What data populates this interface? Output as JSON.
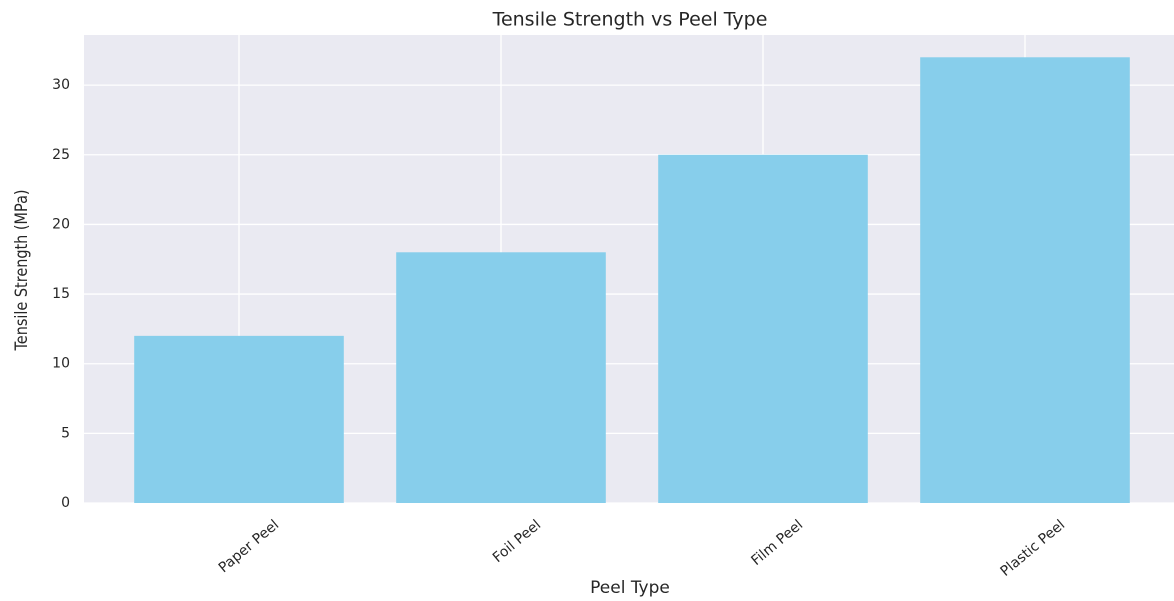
{
  "chart_data": {
    "type": "bar",
    "title": "Tensile Strength vs Peel Type",
    "xlabel": "Peel Type",
    "ylabel": "Tensile Strength (MPa)",
    "categories": [
      "Paper Peel",
      "Foil Peel",
      "Film Peel",
      "Plastic Peel"
    ],
    "values": [
      12,
      18,
      25,
      32
    ],
    "color": "#87ceeb",
    "ylim": [
      0,
      33.6
    ],
    "yticks": [
      0,
      5,
      10,
      15,
      20,
      25,
      30
    ],
    "grid": true
  }
}
